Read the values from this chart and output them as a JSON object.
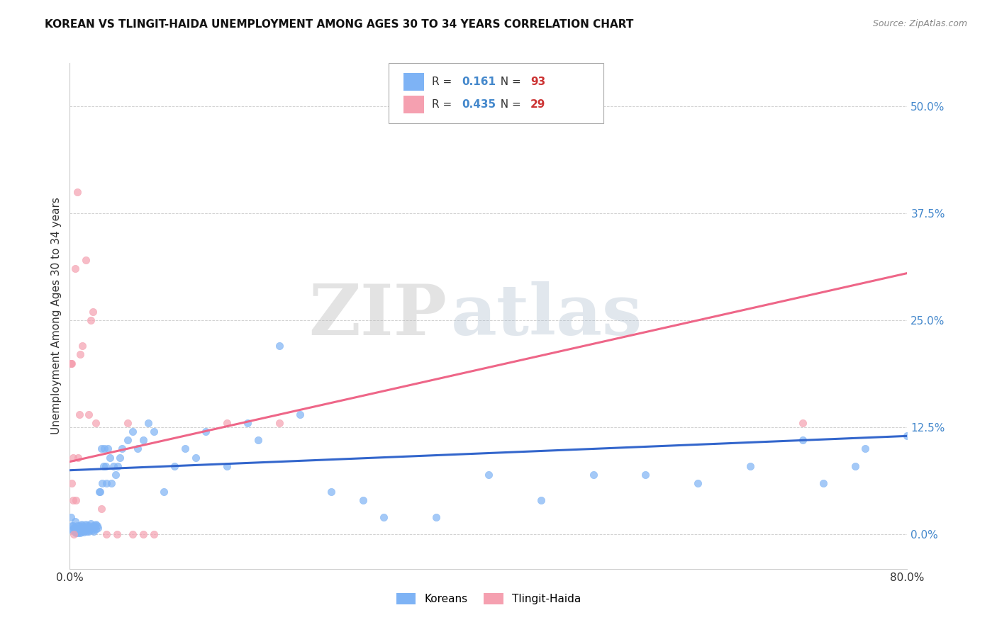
{
  "title": "KOREAN VS TLINGIT-HAIDA UNEMPLOYMENT AMONG AGES 30 TO 34 YEARS CORRELATION CHART",
  "source": "Source: ZipAtlas.com",
  "ylabel": "Unemployment Among Ages 30 to 34 years",
  "xlim": [
    0.0,
    0.8
  ],
  "ylim": [
    -0.04,
    0.55
  ],
  "x_ticks": [
    0.0,
    0.2,
    0.4,
    0.6,
    0.8
  ],
  "x_tick_labels": [
    "0.0%",
    "",
    "",
    "",
    "80.0%"
  ],
  "y_ticks": [
    0.0,
    0.125,
    0.25,
    0.375,
    0.5
  ],
  "y_tick_labels": [
    "0.0%",
    "12.5%",
    "25.0%",
    "37.5%",
    "50.0%"
  ],
  "korean_R": "0.161",
  "korean_N": "93",
  "tlingit_R": "0.435",
  "tlingit_N": "29",
  "korean_color": "#7EB3F5",
  "tlingit_color": "#F5A0B0",
  "korean_line_color": "#3366CC",
  "tlingit_line_color": "#EE6688",
  "watermark_zip": "ZIP",
  "watermark_atlas": "atlas",
  "legend_label_korean": "Koreans",
  "legend_label_tlingit": "Tlingit-Haida",
  "korean_line_x0": 0.0,
  "korean_line_y0": 0.075,
  "korean_line_x1": 0.8,
  "korean_line_y1": 0.115,
  "tlingit_line_x0": 0.0,
  "tlingit_line_y0": 0.085,
  "tlingit_line_x1": 0.8,
  "tlingit_line_y1": 0.305,
  "korean_points_x": [
    0.001,
    0.002,
    0.002,
    0.003,
    0.003,
    0.004,
    0.005,
    0.005,
    0.005,
    0.006,
    0.006,
    0.007,
    0.007,
    0.008,
    0.008,
    0.009,
    0.009,
    0.01,
    0.01,
    0.01,
    0.011,
    0.011,
    0.012,
    0.012,
    0.013,
    0.013,
    0.014,
    0.015,
    0.015,
    0.016,
    0.016,
    0.017,
    0.018,
    0.018,
    0.019,
    0.02,
    0.021,
    0.022,
    0.022,
    0.023,
    0.023,
    0.024,
    0.025,
    0.025,
    0.026,
    0.027,
    0.028,
    0.029,
    0.03,
    0.031,
    0.032,
    0.033,
    0.034,
    0.035,
    0.036,
    0.038,
    0.04,
    0.042,
    0.044,
    0.046,
    0.048,
    0.05,
    0.055,
    0.06,
    0.065,
    0.07,
    0.075,
    0.08,
    0.09,
    0.1,
    0.11,
    0.12,
    0.13,
    0.15,
    0.17,
    0.18,
    0.2,
    0.22,
    0.25,
    0.28,
    0.3,
    0.35,
    0.4,
    0.45,
    0.5,
    0.55,
    0.6,
    0.65,
    0.7,
    0.72,
    0.75,
    0.76,
    0.8
  ],
  "korean_points_y": [
    0.02,
    0.01,
    0.005,
    0.005,
    0.01,
    0.008,
    0.015,
    0.008,
    0.003,
    0.002,
    0.007,
    0.003,
    0.01,
    0.005,
    0.002,
    0.01,
    0.004,
    0.008,
    0.004,
    0.002,
    0.012,
    0.006,
    0.01,
    0.004,
    0.008,
    0.003,
    0.005,
    0.012,
    0.005,
    0.01,
    0.004,
    0.008,
    0.01,
    0.004,
    0.005,
    0.013,
    0.008,
    0.005,
    0.01,
    0.008,
    0.004,
    0.01,
    0.012,
    0.006,
    0.01,
    0.008,
    0.05,
    0.05,
    0.1,
    0.06,
    0.08,
    0.1,
    0.08,
    0.06,
    0.1,
    0.09,
    0.06,
    0.08,
    0.07,
    0.08,
    0.09,
    0.1,
    0.11,
    0.12,
    0.1,
    0.11,
    0.13,
    0.12,
    0.05,
    0.08,
    0.1,
    0.09,
    0.12,
    0.08,
    0.13,
    0.11,
    0.22,
    0.14,
    0.05,
    0.04,
    0.02,
    0.02,
    0.07,
    0.04,
    0.07,
    0.07,
    0.06,
    0.08,
    0.11,
    0.06,
    0.08,
    0.1,
    0.115
  ],
  "tlingit_points_x": [
    0.001,
    0.001,
    0.002,
    0.002,
    0.003,
    0.003,
    0.004,
    0.005,
    0.006,
    0.007,
    0.008,
    0.009,
    0.01,
    0.012,
    0.015,
    0.018,
    0.02,
    0.022,
    0.025,
    0.03,
    0.035,
    0.045,
    0.055,
    0.06,
    0.07,
    0.08,
    0.15,
    0.2,
    0.7
  ],
  "tlingit_points_y": [
    0.2,
    0.2,
    0.2,
    0.06,
    0.09,
    0.04,
    0.0,
    0.31,
    0.04,
    0.4,
    0.09,
    0.14,
    0.21,
    0.22,
    0.32,
    0.14,
    0.25,
    0.26,
    0.13,
    0.03,
    0.0,
    0.0,
    0.13,
    0.0,
    0.0,
    0.0,
    0.13,
    0.13,
    0.13
  ]
}
